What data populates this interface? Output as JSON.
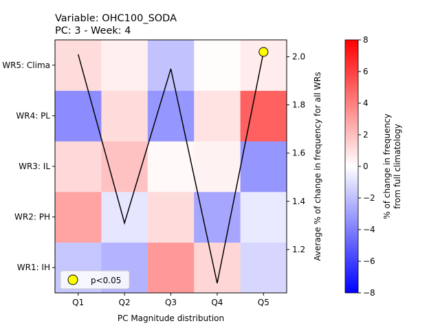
{
  "chart_data": {
    "type": "heatmap",
    "title_line1": "Variable: OHC100_SODA",
    "title_line2": "PC: 3 - Week: 4",
    "xlabel": "PC Magnitude distribution",
    "ylabel_right": "Average % of change in frequency for all WRs",
    "x_categories": [
      "Q1",
      "Q2",
      "Q3",
      "Q4",
      "Q5"
    ],
    "y_categories": [
      "WR1: IH",
      "WR2: PH",
      "WR3: IL",
      "WR4: PL",
      "WR5: Clima"
    ],
    "heatmap_values": [
      [
        -1.8,
        -2.4,
        3.2,
        1.3,
        -1.3
      ],
      [
        2.9,
        -0.8,
        1.1,
        -2.8,
        -0.7
      ],
      [
        1.2,
        1.9,
        0.2,
        0.4,
        -3.3
      ],
      [
        -3.6,
        1.1,
        -3.3,
        0.9,
        5.0
      ],
      [
        1.1,
        0.5,
        -1.9,
        0.1,
        0.6
      ]
    ],
    "color_scale": {
      "min": -8,
      "max": 8,
      "colormap": "bwr",
      "low_color": "#0000ff",
      "mid_color": "#ffffff",
      "high_color": "#ff0000",
      "ticks": [
        "-8",
        "-6",
        "-4",
        "-2",
        "0",
        "2",
        "4",
        "6",
        "8"
      ],
      "label_line1": "% of change in frequency",
      "label_line2": "from full climatology"
    },
    "line_series": {
      "x": [
        "Q1",
        "Q2",
        "Q3",
        "Q4",
        "Q5"
      ],
      "values": [
        2.01,
        1.31,
        1.95,
        1.06,
        2.02
      ],
      "color": "#000000"
    },
    "right_axis": {
      "ylim": [
        1.02,
        2.07
      ],
      "ticks": [
        "1.2",
        "1.4",
        "1.6",
        "1.8",
        "2.0"
      ]
    },
    "significance_markers": [
      {
        "x": "Q5",
        "value": 2.02
      }
    ],
    "marker_color": "#ffff00",
    "legend": {
      "label": "p<0.05",
      "placement": "lower-left"
    }
  }
}
